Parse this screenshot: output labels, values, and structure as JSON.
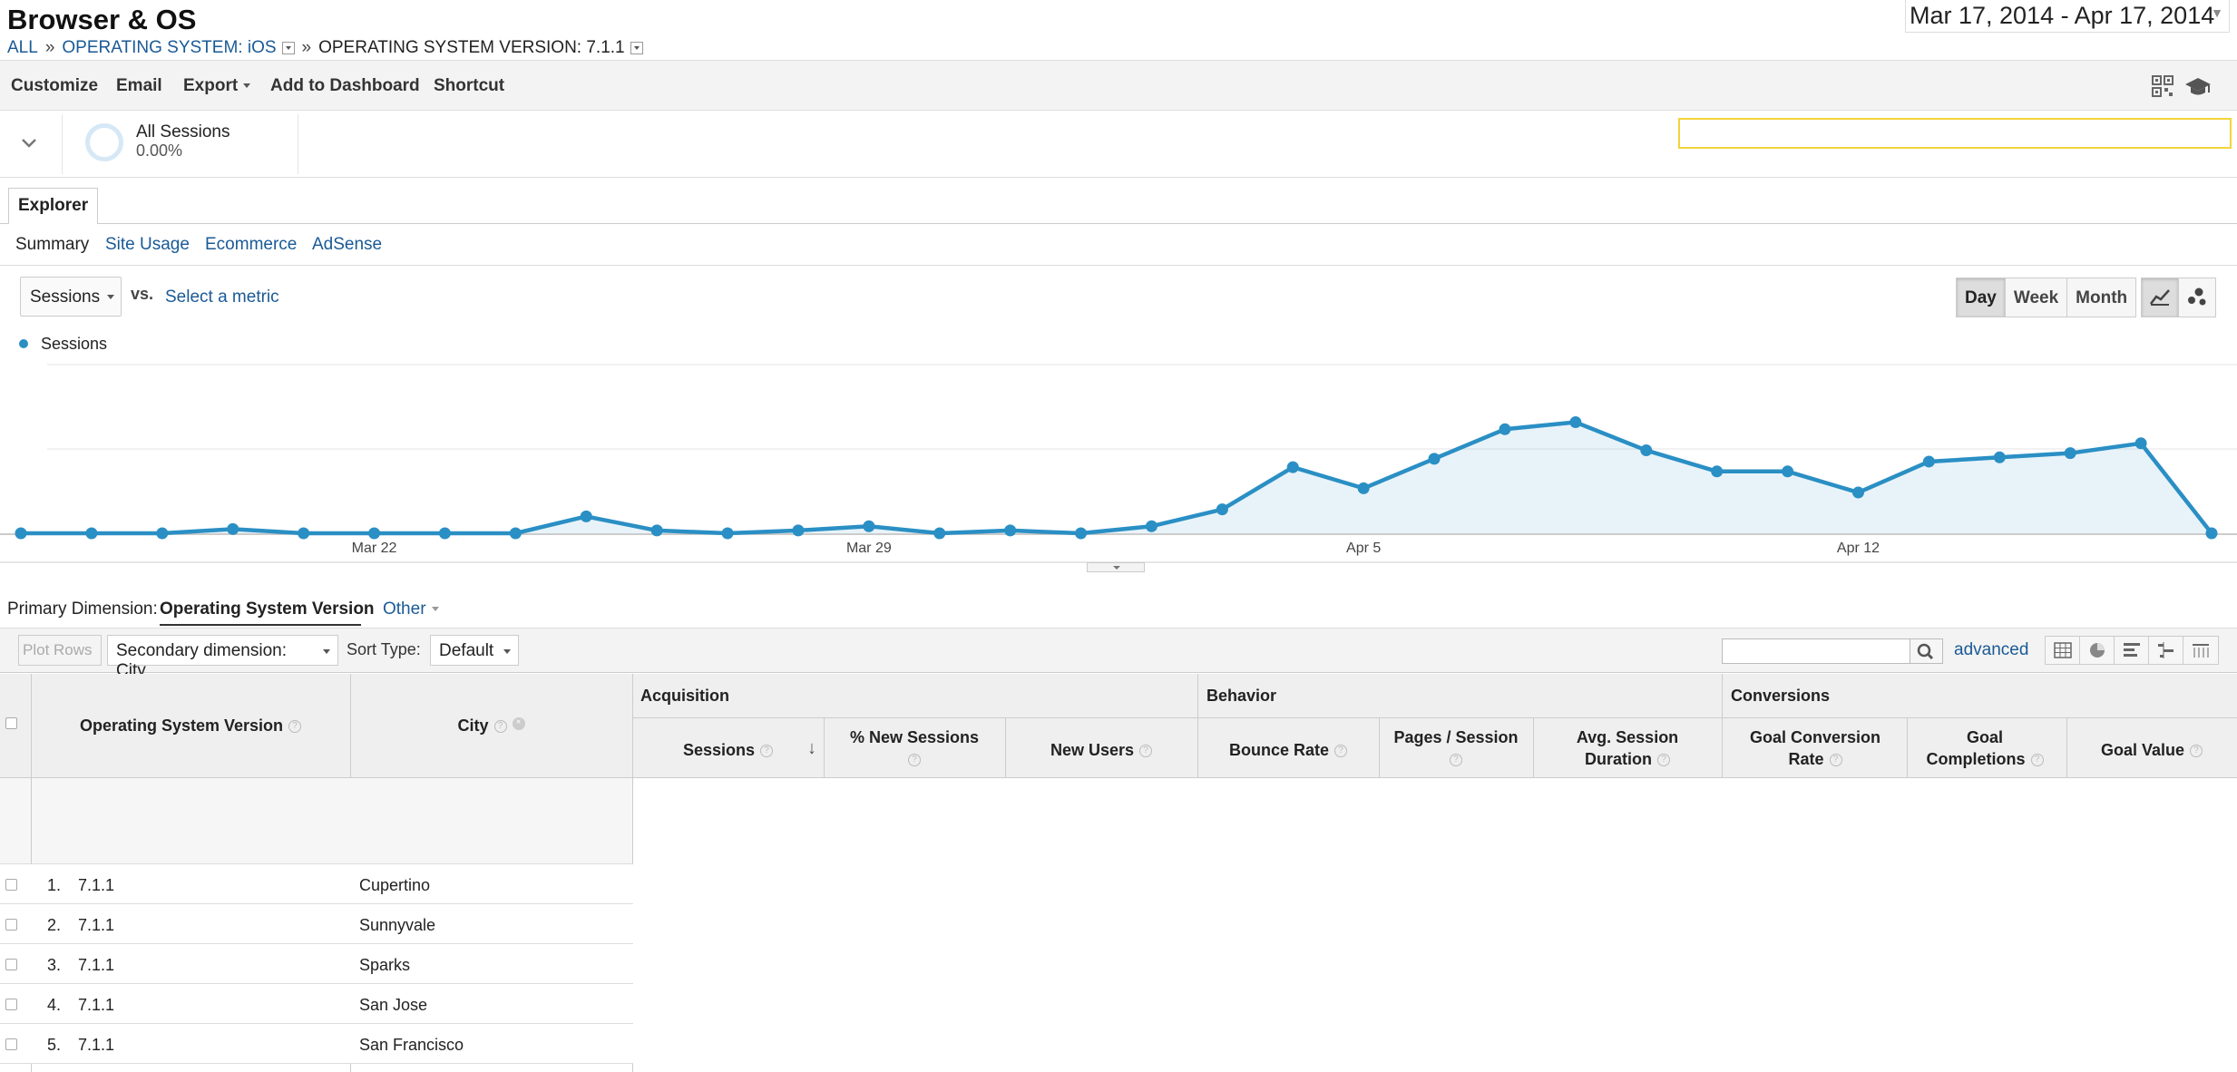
{
  "header": {
    "title": "Browser & OS",
    "date_range": "Mar 17, 2014 - Apr 17, 2014",
    "breadcrumbs": [
      "ALL",
      "OPERATING SYSTEM: iOS",
      "OPERATING SYSTEM VERSION: 7.1.1"
    ],
    "breadcrumb_sep": "»"
  },
  "toolbar": {
    "customize": "Customize",
    "email": "Email",
    "export": "Export",
    "add_to_dashboard": "Add to Dashboard",
    "shortcut": "Shortcut",
    "icons": [
      "qr-code-icon",
      "graduation-cap-icon"
    ]
  },
  "segment": {
    "name": "All Sessions",
    "percent": "0.00%"
  },
  "tabs": {
    "explorer": "Explorer",
    "subtabs": [
      "Summary",
      "Site Usage",
      "Ecommerce",
      "AdSense"
    ]
  },
  "chart_controls": {
    "metric": "Sessions",
    "vs": "vs.",
    "select_metric": "Select a metric",
    "granularity": [
      "Day",
      "Week",
      "Month"
    ],
    "active_granularity": "Day",
    "legend": "Sessions",
    "icons": [
      "line-chart-icon",
      "motion-chart-icon"
    ]
  },
  "chart_data": {
    "type": "area",
    "series": [
      {
        "name": "Sessions",
        "color": "#2a8fc4",
        "values": [
          0,
          0,
          0,
          0.3,
          0,
          0,
          0,
          0,
          1.2,
          0.2,
          0,
          0.2,
          0.5,
          0,
          0.2,
          0,
          0.5,
          1.7,
          4.7,
          3.2,
          5.3,
          7.4,
          7.9,
          5.9,
          4.4,
          4.4,
          2.9,
          5.1,
          5.4,
          5.7,
          6.4,
          0
        ]
      }
    ],
    "x_tick_labels": [
      "Mar 22",
      "Mar 29",
      "Apr 5",
      "Apr 12"
    ],
    "x_tick_indices": [
      5,
      12,
      19,
      26
    ],
    "ylim": [
      0,
      12
    ],
    "grid": true
  },
  "dimension": {
    "label": "Primary Dimension:",
    "value": "Operating System Version",
    "other": "Other"
  },
  "table_controls": {
    "plot_rows": "Plot Rows",
    "secondary_dimension": "Secondary dimension: City",
    "sort_label": "Sort Type:",
    "sort_value": "Default",
    "advanced": "advanced",
    "view_icons": [
      "table-view-icon",
      "pie-view-icon",
      "bar-view-icon",
      "comparison-view-icon",
      "pivot-view-icon"
    ]
  },
  "table": {
    "headers": {
      "os_version": "Operating System Version",
      "city": "City",
      "acquisition": "Acquisition",
      "behavior": "Behavior",
      "conversions": "Conversions",
      "sessions": "Sessions",
      "new_sessions_pct": "% New Sessions",
      "new_users": "New Users",
      "bounce_rate": "Bounce Rate",
      "pages_per_session": "Pages / Session",
      "avg_session_duration": "Avg. Session Duration",
      "goal_conversion_rate": "Goal Conversion Rate",
      "goal_completions": "Goal Completions",
      "goal_value": "Goal Value"
    },
    "rows": [
      {
        "num": "1.",
        "os": "7.1.1",
        "city": "Cupertino"
      },
      {
        "num": "2.",
        "os": "7.1.1",
        "city": "Sunnyvale"
      },
      {
        "num": "3.",
        "os": "7.1.1",
        "city": "Sparks"
      },
      {
        "num": "4.",
        "os": "7.1.1",
        "city": "San Jose"
      },
      {
        "num": "5.",
        "os": "7.1.1",
        "city": "San Francisco"
      }
    ]
  }
}
